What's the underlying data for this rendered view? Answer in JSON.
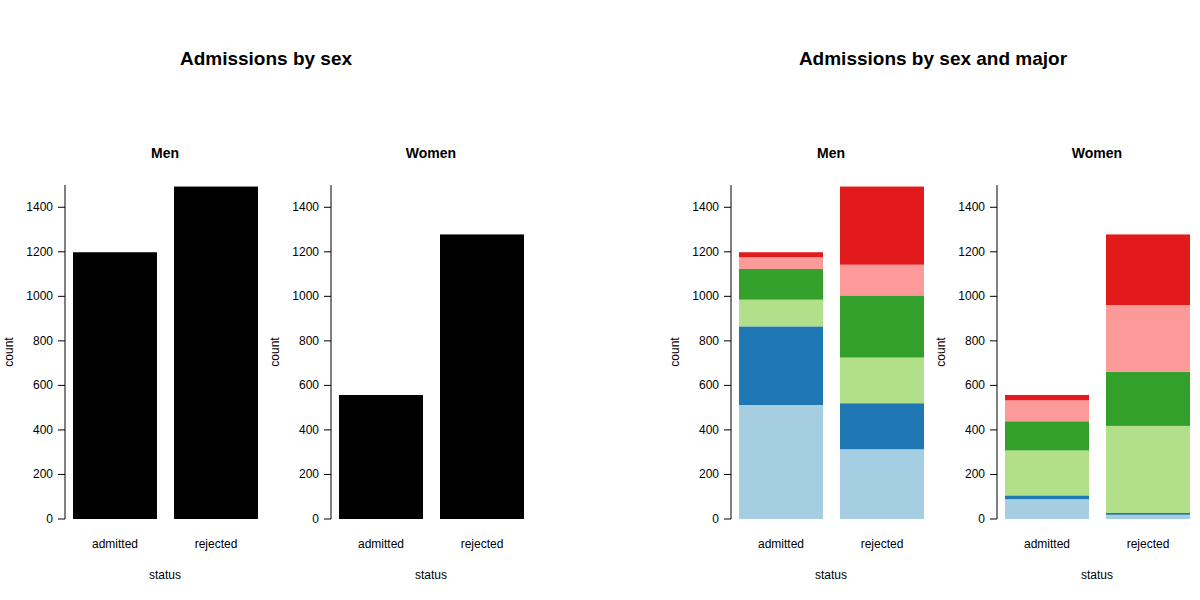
{
  "figure_titles": [
    "Admissions by sex",
    "Admissions by sex and major"
  ],
  "chart_data": [
    {
      "type": "bar",
      "title": "Men",
      "x_label": "status",
      "y_label": "count",
      "categories": [
        "admitted",
        "rejected"
      ],
      "values": [
        1198,
        1493
      ],
      "color": "#000000",
      "ylim": [
        0,
        1500
      ],
      "yticks": [
        0,
        200,
        400,
        600,
        800,
        1000,
        1200,
        1400
      ]
    },
    {
      "type": "bar",
      "title": "Women",
      "x_label": "status",
      "y_label": "count",
      "categories": [
        "admitted",
        "rejected"
      ],
      "values": [
        557,
        1278
      ],
      "color": "#000000",
      "ylim": [
        0,
        1500
      ],
      "yticks": [
        0,
        200,
        400,
        600,
        800,
        1000,
        1200,
        1400
      ]
    },
    {
      "type": "bar",
      "title": "Men",
      "x_label": "status",
      "y_label": "count",
      "stacked": true,
      "categories": [
        "admitted",
        "rejected"
      ],
      "series": [
        {
          "color": "#a6cee3",
          "values": [
            512,
            313
          ]
        },
        {
          "color": "#1f78b4",
          "values": [
            353,
            207
          ]
        },
        {
          "color": "#b2df8a",
          "values": [
            120,
            205
          ]
        },
        {
          "color": "#33a02c",
          "values": [
            138,
            279
          ]
        },
        {
          "color": "#fb9a99",
          "values": [
            53,
            138
          ]
        },
        {
          "color": "#e31a1c",
          "values": [
            22,
            351
          ]
        }
      ],
      "ylim": [
        0,
        1500
      ],
      "yticks": [
        0,
        200,
        400,
        600,
        800,
        1000,
        1200,
        1400
      ]
    },
    {
      "type": "bar",
      "title": "Women",
      "x_label": "status",
      "y_label": "count",
      "stacked": true,
      "categories": [
        "admitted",
        "rejected"
      ],
      "series": [
        {
          "color": "#a6cee3",
          "values": [
            89,
            19
          ]
        },
        {
          "color": "#1f78b4",
          "values": [
            17,
            8
          ]
        },
        {
          "color": "#b2df8a",
          "values": [
            202,
            391
          ]
        },
        {
          "color": "#33a02c",
          "values": [
            131,
            244
          ]
        },
        {
          "color": "#fb9a99",
          "values": [
            94,
            299
          ]
        },
        {
          "color": "#e31a1c",
          "values": [
            24,
            317
          ]
        }
      ],
      "ylim": [
        0,
        1500
      ],
      "yticks": [
        0,
        200,
        400,
        600,
        800,
        1000,
        1200,
        1400
      ]
    }
  ]
}
